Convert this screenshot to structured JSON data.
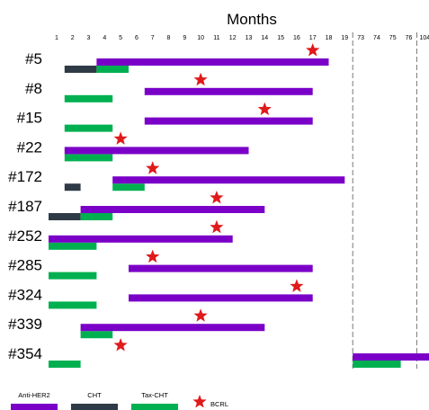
{
  "chart_data": {
    "type": "gantt",
    "title": "Months",
    "x_ticks": [
      "1",
      "2",
      "3",
      "4",
      "5",
      "6",
      "7",
      "8",
      "9",
      "10",
      "11",
      "12",
      "13",
      "14",
      "15",
      "16",
      "17",
      "18",
      "19",
      "73",
      "74",
      "75",
      "76",
      "104"
    ],
    "axis_break": "dashed lines after month 19 and after month 76",
    "colors": {
      "Anti-HER2": "#7a00c8",
      "CHT": "#2e3a46",
      "Tax-CHT": "#00b050",
      "BCRL": "#e01a1a"
    },
    "legend": [
      {
        "key": "Anti-HER2",
        "label": "Anti-HER2",
        "kind": "bar"
      },
      {
        "key": "CHT",
        "label": "CHT",
        "kind": "bar"
      },
      {
        "key": "Tax-CHT",
        "label": "Tax-CHT",
        "kind": "bar"
      },
      {
        "key": "BCRL",
        "label": "BCRL",
        "kind": "star"
      }
    ],
    "patients": [
      {
        "id": "#5",
        "bcrl": 17,
        "anti_her2": [
          3,
          17.5
        ],
        "cht": [
          1,
          3
        ],
        "tax_cht": [
          3,
          5
        ]
      },
      {
        "id": "#8",
        "bcrl": 10,
        "anti_her2": [
          6,
          16.5
        ],
        "tax_cht": [
          1,
          4
        ]
      },
      {
        "id": "#15",
        "bcrl": 14,
        "anti_her2": [
          6,
          16.5
        ],
        "tax_cht": [
          1,
          4
        ]
      },
      {
        "id": "#22",
        "bcrl": 5,
        "anti_her2": [
          1,
          12.5
        ],
        "tax_cht": [
          1,
          4
        ]
      },
      {
        "id": "#172",
        "bcrl": 7,
        "anti_her2": [
          4,
          18.5
        ],
        "cht": [
          1,
          2
        ],
        "tax_cht": [
          4,
          6
        ]
      },
      {
        "id": "#187",
        "bcrl": 11,
        "anti_her2": [
          2,
          13.5
        ],
        "cht": [
          0,
          2
        ],
        "tax_cht": [
          2,
          4
        ]
      },
      {
        "id": "#252",
        "bcrl": 11,
        "anti_her2": [
          0,
          11.5
        ],
        "tax_cht": [
          0,
          3
        ]
      },
      {
        "id": "#285",
        "bcrl": 7,
        "anti_her2": [
          5,
          16.5
        ],
        "tax_cht": [
          0,
          3
        ]
      },
      {
        "id": "#324",
        "bcrl": 16,
        "anti_her2": [
          5,
          16.5
        ],
        "tax_cht": [
          0,
          3
        ]
      },
      {
        "id": "#339",
        "bcrl": 10,
        "anti_her2": [
          2,
          13.5
        ],
        "tax_cht": [
          2,
          4
        ]
      },
      {
        "id": "#354",
        "bcrl": 5,
        "anti_her2": [
          19,
          24
        ],
        "tax_cht_after_break": [
          19,
          22
        ],
        "tax_cht": [
          0,
          2
        ]
      }
    ]
  }
}
